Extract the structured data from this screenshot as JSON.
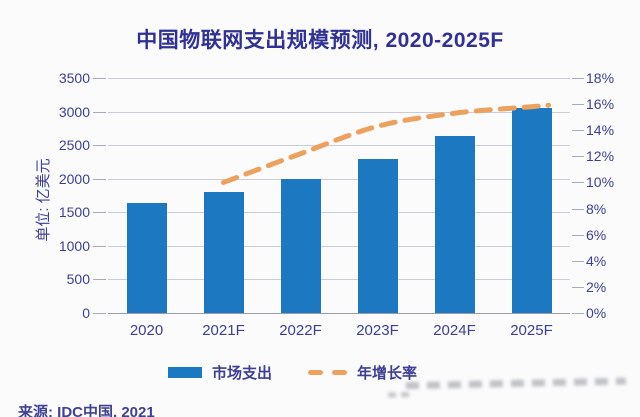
{
  "title": "中国物联网支出规模预测, 2020-2025F",
  "y_axis_label": "单位: 亿美元",
  "source": "来源: IDC中国, 2021",
  "legend": {
    "bars_label": "市场支出",
    "line_label": "年增长率"
  },
  "colors": {
    "bar": "#1c79c1",
    "line": "#eca15f",
    "title_text": "#2f3193",
    "axis_text": "#3c3f94",
    "gridline": "#cbcdd6"
  },
  "chart_data": {
    "type": "bar",
    "title": "中国物联网支出规模预测, 2020-2025F",
    "categories": [
      "2020",
      "2021F",
      "2022F",
      "2023F",
      "2024F",
      "2025F"
    ],
    "series": [
      {
        "name": "市场支出",
        "type": "bar",
        "axis": "left",
        "values": [
          1640,
          1800,
          2000,
          2300,
          2630,
          3050
        ]
      },
      {
        "name": "年增长率",
        "type": "line",
        "axis": "right",
        "values": [
          null,
          10.0,
          12.2,
          14.3,
          15.3,
          15.8
        ]
      }
    ],
    "left_axis": {
      "label": "单位: 亿美元",
      "min": 0,
      "max": 3500,
      "step": 500,
      "tick_labels": [
        "0",
        "500",
        "1000",
        "1500",
        "2000",
        "2500",
        "3000",
        "3500"
      ]
    },
    "right_axis": {
      "min": 0,
      "max": 18,
      "step": 2,
      "tick_labels": [
        "0%",
        "2%",
        "4%",
        "6%",
        "8%",
        "10%",
        "12%",
        "14%",
        "16%",
        "18%"
      ]
    },
    "grid": true,
    "legend_position": "bottom"
  }
}
